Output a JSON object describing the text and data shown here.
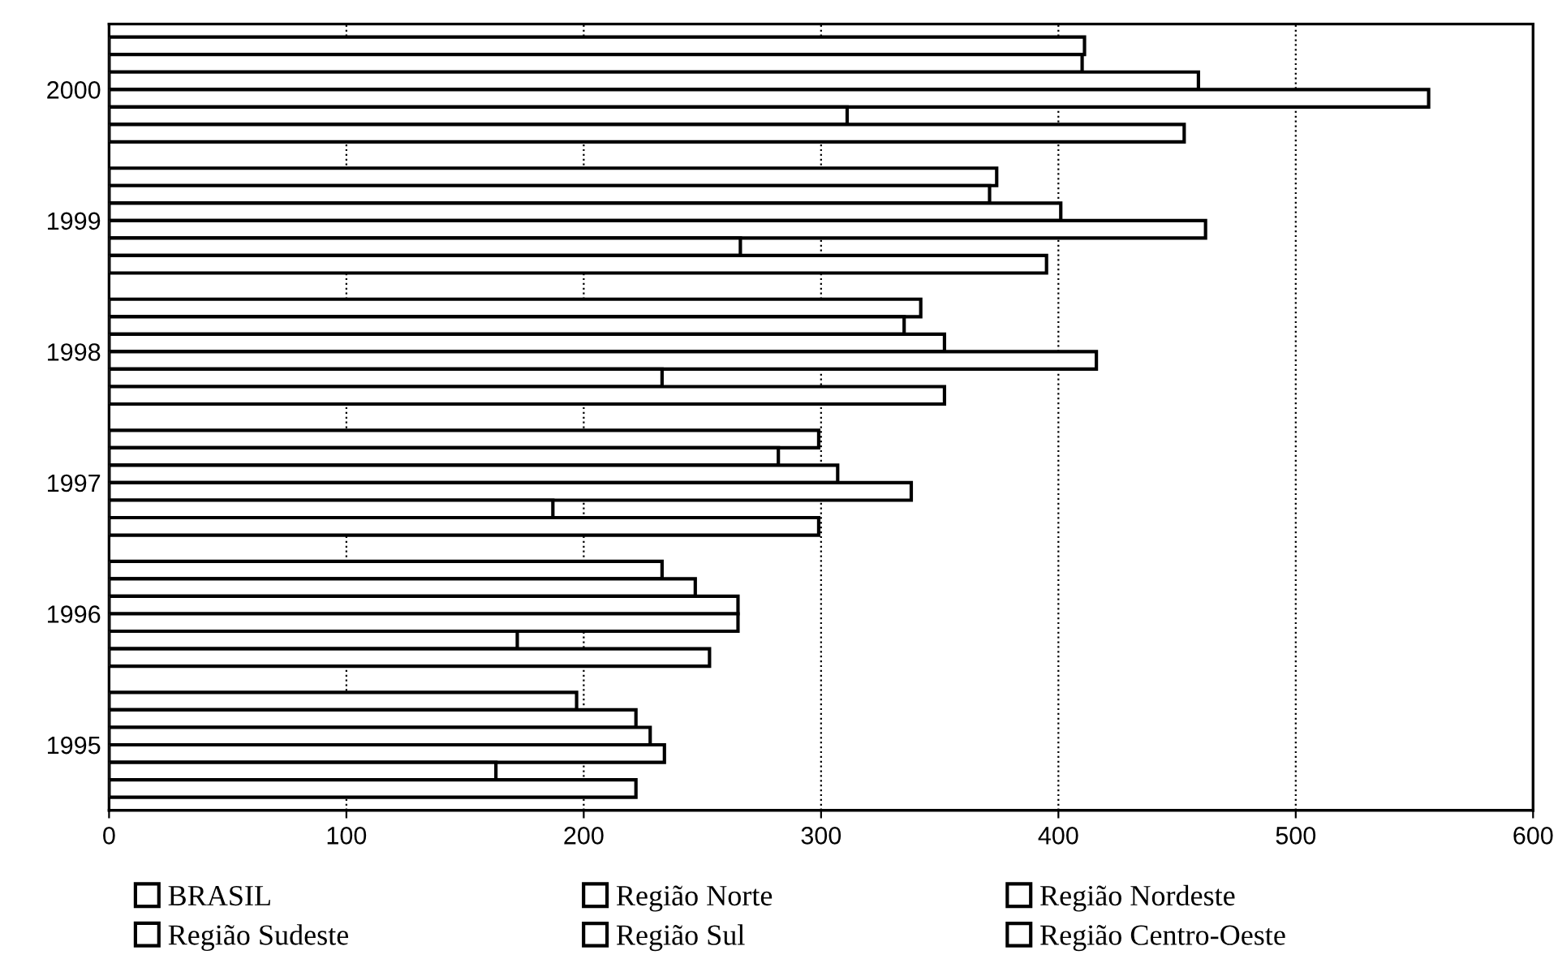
{
  "chart_data": {
    "type": "bar",
    "orientation": "horizontal",
    "categories": [
      "2000",
      "1999",
      "1998",
      "1997",
      "1996",
      "1995"
    ],
    "series": [
      {
        "name": "Região Centro-Oeste",
        "color": "#ffffff",
        "values": [
          411,
          374,
          342,
          299,
          233,
          197
        ]
      },
      {
        "name": "Região Sul",
        "color": "#ffffff",
        "values": [
          410,
          371,
          335,
          282,
          247,
          222
        ]
      },
      {
        "name": "Região Sudeste",
        "color": "#ffffff",
        "values": [
          459,
          401,
          352,
          307,
          265,
          228
        ]
      },
      {
        "name": "Região Nordeste",
        "color": "#ffffff",
        "values": [
          556,
          462,
          416,
          338,
          265,
          234
        ]
      },
      {
        "name": "Região Norte",
        "color": "#ffffff",
        "values": [
          311,
          266,
          233,
          187,
          172,
          163
        ]
      },
      {
        "name": "BRASIL",
        "color": "#ffffff",
        "values": [
          453,
          395,
          352,
          299,
          253,
          222
        ]
      }
    ],
    "xlim": [
      0,
      600
    ],
    "xticks": [
      0,
      100,
      200,
      300,
      400,
      500,
      600
    ],
    "grid": "x",
    "legend": "bottom"
  }
}
